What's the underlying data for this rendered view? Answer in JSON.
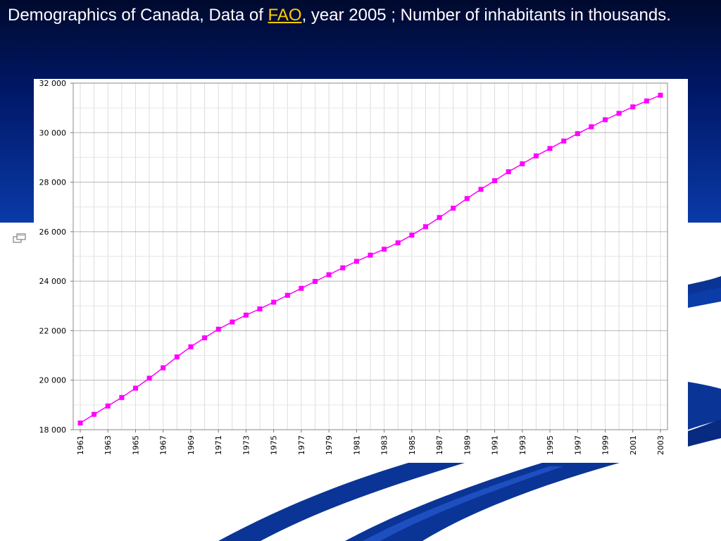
{
  "slide": {
    "title_before": "Demographics of Canada, Data of ",
    "title_link": "FAO",
    "title_after": ", year 2005 ; Number of inhabitants in thousands.",
    "icon": "slide-icon"
  },
  "colors": {
    "series": "#ff00ff",
    "background_dark": "#001766",
    "swoosh": "#0a3596",
    "link": "#ffcc00"
  },
  "chart_data": {
    "type": "line",
    "title": "",
    "xlabel": "",
    "ylabel": "",
    "x": [
      1961,
      1962,
      1963,
      1964,
      1965,
      1966,
      1967,
      1968,
      1969,
      1970,
      1971,
      1972,
      1973,
      1974,
      1975,
      1976,
      1977,
      1978,
      1979,
      1980,
      1981,
      1982,
      1983,
      1984,
      1985,
      1986,
      1987,
      1988,
      1989,
      1990,
      1991,
      1992,
      1993,
      1994,
      1995,
      1996,
      1997,
      1998,
      1999,
      2000,
      2001,
      2002,
      2003
    ],
    "series": [
      {
        "values": [
          18270,
          18620,
          18960,
          19300,
          19680,
          20080,
          20500,
          20940,
          21350,
          21710,
          22060,
          22350,
          22630,
          22880,
          23150,
          23430,
          23710,
          23990,
          24260,
          24540,
          24800,
          25050,
          25290,
          25550,
          25860,
          26200,
          26570,
          26950,
          27340,
          27710,
          28060,
          28420,
          28740,
          29060,
          29360,
          29660,
          29960,
          30240,
          30520,
          30780,
          31040,
          31280,
          31510
        ]
      }
    ],
    "ylim": [
      18000,
      32000
    ],
    "yticks": [
      18000,
      20000,
      22000,
      24000,
      26000,
      28000,
      30000,
      32000
    ],
    "ytick_labels": [
      "18 000",
      "20 000",
      "22 000",
      "24 000",
      "26 000",
      "28 000",
      "30 000",
      "32 000"
    ],
    "xtick_labels": [
      "1961",
      "1963",
      "1965",
      "1967",
      "1969",
      "1971",
      "1973",
      "1975",
      "1977",
      "1979",
      "1981",
      "1983",
      "1985",
      "1987",
      "1989",
      "1991",
      "1993",
      "1995",
      "1997",
      "1999",
      "2001",
      "2003"
    ],
    "grid": true,
    "marker": "square"
  }
}
